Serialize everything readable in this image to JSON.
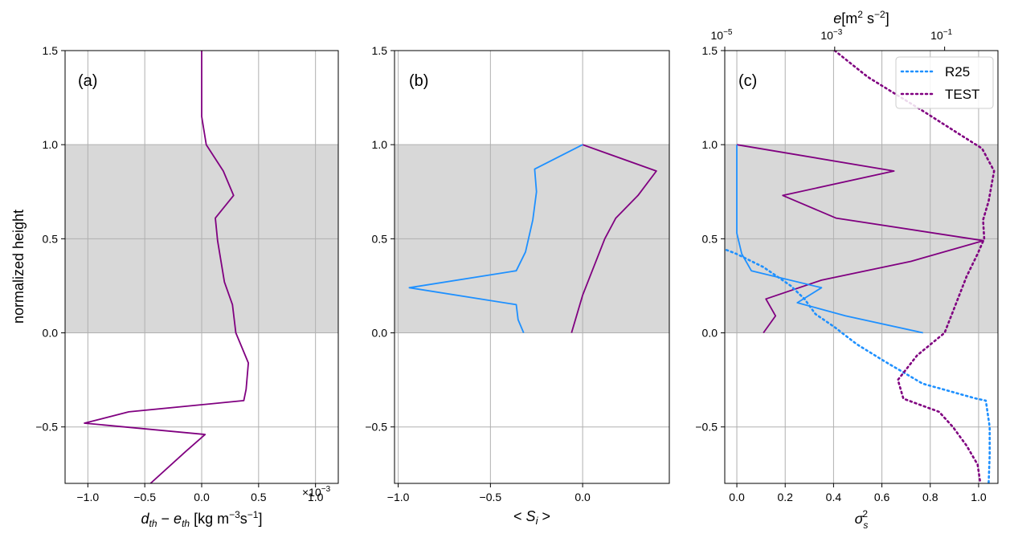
{
  "colors": {
    "purple": "#800080",
    "blue": "#1e90ff",
    "shade": "#d8d8d8",
    "grid": "#b0b0b0"
  },
  "chart_data": [
    {
      "type": "line",
      "panel_label": "(a)",
      "xlabel": "d_th − e_th [kg m⁻³s⁻¹]",
      "ylabel": "normalized height",
      "x_multiplier": "×10⁻³",
      "xlim": [
        -1.2,
        1.2
      ],
      "ylim": [
        -0.8,
        1.5
      ],
      "xticks": [
        -1.0,
        -0.5,
        0.0,
        0.5,
        1.0
      ],
      "xticklabels": [
        "−1.0",
        "−0.5",
        "0.0",
        "0.5",
        "1.0"
      ],
      "yticks": [
        -0.5,
        0.0,
        0.5,
        1.0,
        1.5
      ],
      "yticklabels": [
        "−0.5",
        "0.0",
        "0.5",
        "1.0",
        "1.5"
      ],
      "shaded_band": [
        0.0,
        1.0
      ],
      "grid": true,
      "series": [
        {
          "color": "purple",
          "style": "solid",
          "points": [
            [
              0.0,
              1.5
            ],
            [
              0.0,
              1.15
            ],
            [
              0.04,
              1.0
            ],
            [
              0.19,
              0.86
            ],
            [
              0.28,
              0.73
            ],
            [
              0.12,
              0.61
            ],
            [
              0.14,
              0.49
            ],
            [
              0.2,
              0.27
            ],
            [
              0.27,
              0.15
            ],
            [
              0.3,
              0.0
            ],
            [
              0.41,
              -0.16
            ],
            [
              0.39,
              -0.3
            ],
            [
              0.37,
              -0.36
            ],
            [
              -0.64,
              -0.42
            ],
            [
              -1.03,
              -0.48
            ],
            [
              0.03,
              -0.54
            ],
            [
              -0.14,
              -0.63
            ],
            [
              -0.45,
              -0.8
            ]
          ]
        }
      ]
    },
    {
      "type": "line",
      "panel_label": "(b)",
      "xlabel": "< S_i >",
      "xlim": [
        -1.02,
        0.47
      ],
      "ylim": [
        -0.8,
        1.5
      ],
      "xticks": [
        -1.0,
        -0.5,
        0.0
      ],
      "xticklabels": [
        "−1.0",
        "−0.5",
        "0.0"
      ],
      "yticks": [
        -0.5,
        0.0,
        0.5,
        1.0,
        1.5
      ],
      "yticklabels": [
        "−0.5",
        "0.0",
        "0.5",
        "1.0",
        "1.5"
      ],
      "shaded_band": [
        0.0,
        1.0
      ],
      "grid": true,
      "series": [
        {
          "color": "purple",
          "style": "solid",
          "points": [
            [
              -0.06,
              0.0
            ],
            [
              0.0,
              0.2
            ],
            [
              0.12,
              0.5
            ],
            [
              0.18,
              0.61
            ],
            [
              0.3,
              0.73
            ],
            [
              0.4,
              0.86
            ],
            [
              0.0,
              1.0
            ]
          ]
        },
        {
          "color": "blue",
          "style": "solid",
          "points": [
            [
              -0.32,
              0.0
            ],
            [
              -0.35,
              0.07
            ],
            [
              -0.36,
              0.15
            ],
            [
              -0.94,
              0.24
            ],
            [
              -0.36,
              0.33
            ],
            [
              -0.31,
              0.43
            ],
            [
              -0.27,
              0.6
            ],
            [
              -0.25,
              0.75
            ],
            [
              -0.26,
              0.87
            ],
            [
              0.0,
              1.0
            ]
          ]
        }
      ]
    },
    {
      "type": "line",
      "panel_label": "(c)",
      "xlabel": "σ_s²",
      "top_xlabel": "e[m² s⁻²]",
      "xlim": [
        -0.05,
        1.08
      ],
      "ylim": [
        -0.8,
        1.5
      ],
      "xticks": [
        0.0,
        0.2,
        0.4,
        0.6,
        0.8,
        1.0
      ],
      "xticklabels": [
        "0.0",
        "0.2",
        "0.4",
        "0.6",
        "0.8",
        "1.0"
      ],
      "top_xscale": "log",
      "top_xlim_log10": [
        -5,
        -0.03
      ],
      "top_xticks_log10": [
        -5,
        -3,
        -1
      ],
      "top_xticklabels": [
        {
          "base": "10",
          "exp": "−5"
        },
        {
          "base": "10",
          "exp": "−3"
        },
        {
          "base": "10",
          "exp": "−1"
        }
      ],
      "yticks": [
        -0.5,
        0.0,
        0.5,
        1.0,
        1.5
      ],
      "yticklabels": [
        "−0.5",
        "0.0",
        "0.5",
        "1.0",
        "1.5"
      ],
      "shaded_band": [
        0.0,
        1.0
      ],
      "grid": true,
      "legend": {
        "placement": "top-right",
        "entries": [
          {
            "label": "R25",
            "color": "blue"
          },
          {
            "label": "TEST",
            "color": "purple"
          }
        ]
      },
      "series": [
        {
          "color": "purple",
          "style": "solid",
          "points": [
            [
              0.11,
              0.0
            ],
            [
              0.16,
              0.09
            ],
            [
              0.12,
              0.18
            ],
            [
              0.35,
              0.28
            ],
            [
              0.72,
              0.38
            ],
            [
              1.02,
              0.49
            ],
            [
              0.41,
              0.61
            ],
            [
              0.19,
              0.73
            ],
            [
              0.65,
              0.86
            ],
            [
              0.0,
              1.0
            ]
          ]
        },
        {
          "color": "blue",
          "style": "solid",
          "points": [
            [
              0.77,
              0.0
            ],
            [
              0.45,
              0.09
            ],
            [
              0.25,
              0.16
            ],
            [
              0.35,
              0.24
            ],
            [
              0.06,
              0.33
            ],
            [
              0.02,
              0.42
            ],
            [
              0.0,
              0.53
            ],
            [
              0.0,
              1.0
            ]
          ]
        },
        {
          "name": "R25",
          "color": "blue",
          "style": "dotted",
          "axis": "top",
          "points": [
            [
              -5.05,
              0.45
            ],
            [
              -4.79,
              0.42
            ],
            [
              -4.3,
              0.35
            ],
            [
              -3.8,
              0.25
            ],
            [
              -3.55,
              0.18
            ],
            [
              -3.35,
              0.1
            ],
            [
              -3.0,
              0.03
            ],
            [
              -2.6,
              -0.06
            ],
            [
              -2.1,
              -0.15
            ],
            [
              -1.4,
              -0.27
            ],
            [
              -0.42,
              -0.35
            ],
            [
              -0.25,
              -0.36
            ],
            [
              -0.18,
              -0.5
            ],
            [
              -0.18,
              -0.65
            ],
            [
              -0.2,
              -0.8
            ]
          ]
        },
        {
          "name": "TEST",
          "color": "purple",
          "style": "dotted",
          "axis": "top",
          "points": [
            [
              -3.0,
              1.5
            ],
            [
              -2.4,
              1.36
            ],
            [
              -1.4,
              1.18
            ],
            [
              -0.7,
              1.05
            ],
            [
              -0.32,
              0.98
            ],
            [
              -0.1,
              0.86
            ],
            [
              -0.2,
              0.7
            ],
            [
              -0.3,
              0.6
            ],
            [
              -0.28,
              0.5
            ],
            [
              -0.4,
              0.42
            ],
            [
              -0.6,
              0.3
            ],
            [
              -0.8,
              0.15
            ],
            [
              -1.0,
              0.0
            ],
            [
              -1.5,
              -0.12
            ],
            [
              -1.85,
              -0.25
            ],
            [
              -1.75,
              -0.35
            ],
            [
              -1.1,
              -0.42
            ],
            [
              -0.85,
              -0.5
            ],
            [
              -0.6,
              -0.6
            ],
            [
              -0.4,
              -0.7
            ],
            [
              -0.35,
              -0.8
            ]
          ]
        }
      ]
    }
  ]
}
